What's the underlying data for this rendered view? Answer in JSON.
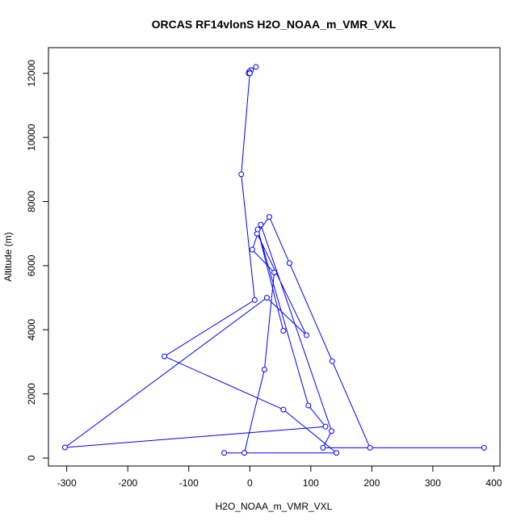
{
  "chart_data": {
    "type": "line",
    "title": "ORCAS RF14vlonS H2O_NOAA_m_VMR_VXL",
    "xlabel": "H2O_NOAA_m_VMR_VXL",
    "ylabel": "Altitude (m)",
    "xlim": [
      -330,
      410
    ],
    "ylim": [
      -250,
      12800
    ],
    "x_ticks": [
      -300,
      -200,
      -100,
      0,
      100,
      200,
      300,
      400
    ],
    "y_ticks": [
      0,
      2000,
      4000,
      6000,
      8000,
      10000,
      12000
    ],
    "grid": false,
    "line_color": "#0000ff",
    "marker": "open-circle",
    "series": [
      {
        "x": [
          10,
          2,
          -1,
          0,
          -2,
          0,
          -14,
          8,
          -140,
          55,
          142,
          -42,
          -9,
          24,
          40,
          4,
          18,
          134,
          120,
          384,
          197,
          135,
          65,
          32,
          12,
          93,
          28,
          -303,
          124,
          96,
          13,
          55
        ],
        "y": [
          12200,
          12100,
          12050,
          12000,
          12000,
          12000,
          8850,
          4930,
          3170,
          1510,
          160,
          160,
          160,
          2760,
          5790,
          6500,
          7280,
          840,
          320,
          320,
          320,
          3020,
          6080,
          7520,
          7000,
          3830,
          5000,
          330,
          980,
          1640,
          7130,
          3970
        ]
      }
    ]
  }
}
